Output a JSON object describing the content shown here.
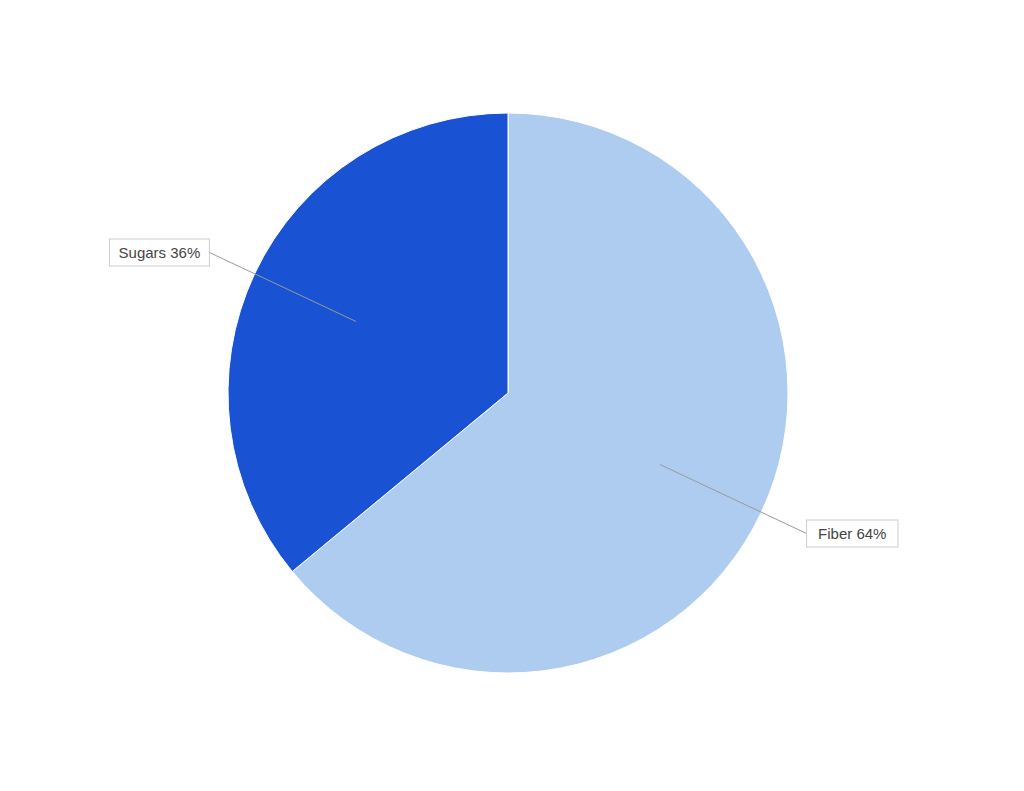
{
  "chart_data": {
    "type": "pie",
    "categories": [
      "Fiber 64%",
      "Sugars 36%"
    ],
    "values": [
      64,
      36
    ],
    "colors": [
      "#aecbf0",
      "#1a52d4"
    ]
  }
}
